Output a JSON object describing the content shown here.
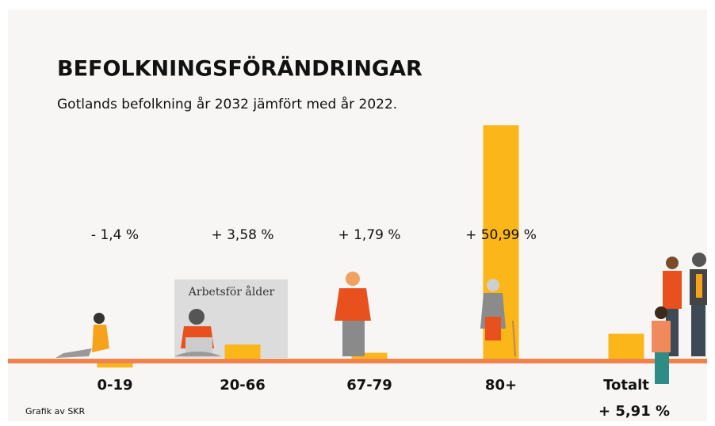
{
  "chart_data": {
    "type": "bar",
    "title": "BEFOLKNINGSFÖRÄNDRINGAR",
    "subtitle": "Gotlands befolkning år 2032 jämfört med år 2022.",
    "categories": [
      "0-19",
      "20-66",
      "67-79",
      "80+",
      "Totalt"
    ],
    "values": [
      -1.4,
      3.58,
      1.79,
      50.99,
      5.91
    ],
    "value_labels": [
      "- 1,4 %",
      "+ 3,58 %",
      "+ 1,79 %",
      "+ 50,99 %",
      "+ 5,91 %"
    ],
    "color": "#fbb61a",
    "annotation": "Arbetsför ålder",
    "source": "Grafik av SKR"
  }
}
